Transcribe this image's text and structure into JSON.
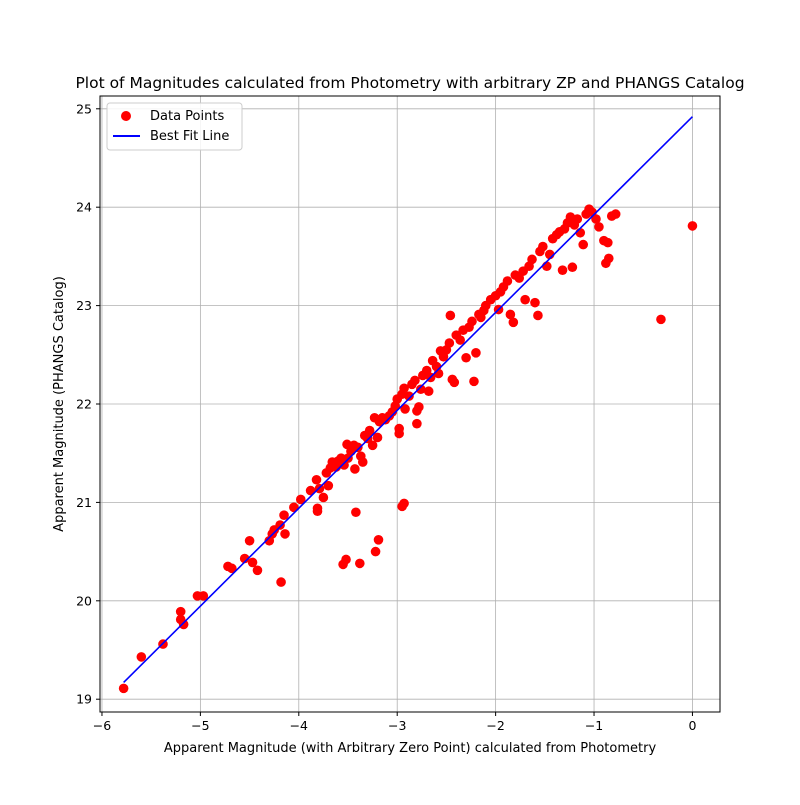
{
  "chart_data": {
    "type": "scatter",
    "title": "Plot of Magnitudes calculated from Photometry with arbitrary ZP and PHANGS Catalog",
    "xlabel": "Apparent Magnitude (with Arbitrary Zero Point) calculated from Photometry",
    "ylabel": "Apparent Magnitude (PHANGS Catalog)",
    "xlim": [
      -6.02,
      0.28
    ],
    "ylim": [
      18.87,
      25.13
    ],
    "xticks": [
      -6,
      -5,
      -4,
      -3,
      -2,
      -1,
      0
    ],
    "xtick_labels": [
      "−6",
      "−5",
      "−4",
      "−3",
      "−2",
      "−1",
      "0"
    ],
    "yticks": [
      19,
      20,
      21,
      22,
      23,
      24,
      25
    ],
    "ytick_labels": [
      "19",
      "20",
      "21",
      "22",
      "23",
      "24",
      "25"
    ],
    "grid": true,
    "legend_position": "top-left",
    "colors": {
      "points": "#ff0000",
      "line": "#0000ff"
    },
    "series": [
      {
        "name": "Data Points",
        "kind": "scatter",
        "points": [
          [
            -5.78,
            19.11
          ],
          [
            -5.6,
            19.43
          ],
          [
            -5.38,
            19.56
          ],
          [
            -5.2,
            19.89
          ],
          [
            -5.2,
            19.81
          ],
          [
            -5.17,
            19.76
          ],
          [
            -5.03,
            20.05
          ],
          [
            -4.97,
            20.05
          ],
          [
            -4.72,
            20.35
          ],
          [
            -4.68,
            20.33
          ],
          [
            -4.55,
            20.43
          ],
          [
            -4.5,
            20.61
          ],
          [
            -4.47,
            20.39
          ],
          [
            -4.42,
            20.31
          ],
          [
            -4.3,
            20.61
          ],
          [
            -4.27,
            20.68
          ],
          [
            -4.25,
            20.72
          ],
          [
            -4.19,
            20.77
          ],
          [
            -4.15,
            20.87
          ],
          [
            -4.14,
            20.68
          ],
          [
            -4.18,
            20.19
          ],
          [
            -4.05,
            20.95
          ],
          [
            -3.98,
            21.03
          ],
          [
            -3.88,
            21.12
          ],
          [
            -3.82,
            21.23
          ],
          [
            -3.79,
            21.14
          ],
          [
            -3.81,
            20.94
          ],
          [
            -3.81,
            20.91
          ],
          [
            -3.75,
            21.05
          ],
          [
            -3.72,
            21.3
          ],
          [
            -3.7,
            21.17
          ],
          [
            -3.68,
            21.35
          ],
          [
            -3.66,
            21.41
          ],
          [
            -3.62,
            21.36
          ],
          [
            -3.6,
            21.42
          ],
          [
            -3.57,
            21.45
          ],
          [
            -3.54,
            21.38
          ],
          [
            -3.51,
            21.59
          ],
          [
            -3.5,
            21.45
          ],
          [
            -3.47,
            21.52
          ],
          [
            -3.44,
            21.58
          ],
          [
            -3.43,
            21.34
          ],
          [
            -3.4,
            21.56
          ],
          [
            -3.37,
            21.47
          ],
          [
            -3.35,
            21.41
          ],
          [
            -3.33,
            21.68
          ],
          [
            -3.3,
            21.65
          ],
          [
            -3.28,
            21.73
          ],
          [
            -3.25,
            21.58
          ],
          [
            -3.23,
            21.86
          ],
          [
            -3.2,
            21.66
          ],
          [
            -3.18,
            21.82
          ],
          [
            -3.15,
            21.86
          ],
          [
            -3.12,
            21.84
          ],
          [
            -3.08,
            21.88
          ],
          [
            -3.05,
            21.92
          ],
          [
            -3.02,
            21.98
          ],
          [
            -3.0,
            22.05
          ],
          [
            -2.98,
            21.75
          ],
          [
            -2.98,
            21.7
          ],
          [
            -2.95,
            22.1
          ],
          [
            -2.93,
            22.16
          ],
          [
            -2.92,
            21.95
          ],
          [
            -2.88,
            22.08
          ],
          [
            -2.85,
            22.2
          ],
          [
            -2.82,
            22.24
          ],
          [
            -2.8,
            21.8
          ],
          [
            -2.8,
            21.93
          ],
          [
            -2.78,
            21.97
          ],
          [
            -2.76,
            22.15
          ],
          [
            -2.74,
            22.29
          ],
          [
            -2.7,
            22.34
          ],
          [
            -2.68,
            22.13
          ],
          [
            -2.66,
            22.27
          ],
          [
            -2.64,
            22.44
          ],
          [
            -2.6,
            22.38
          ],
          [
            -2.58,
            22.31
          ],
          [
            -2.56,
            22.54
          ],
          [
            -2.53,
            22.48
          ],
          [
            -2.5,
            22.55
          ],
          [
            -2.47,
            22.62
          ],
          [
            -2.46,
            22.9
          ],
          [
            -2.44,
            22.25
          ],
          [
            -2.42,
            22.22
          ],
          [
            -2.4,
            22.7
          ],
          [
            -2.36,
            22.65
          ],
          [
            -2.33,
            22.75
          ],
          [
            -2.3,
            22.47
          ],
          [
            -2.27,
            22.78
          ],
          [
            -2.24,
            22.84
          ],
          [
            -2.22,
            22.23
          ],
          [
            -2.2,
            22.52
          ],
          [
            -2.17,
            22.91
          ],
          [
            -2.15,
            22.88
          ],
          [
            -2.12,
            22.95
          ],
          [
            -2.1,
            23.0
          ],
          [
            -2.05,
            23.06
          ],
          [
            -2.0,
            23.1
          ],
          [
            -1.97,
            22.96
          ],
          [
            -1.95,
            23.14
          ],
          [
            -1.92,
            23.19
          ],
          [
            -1.88,
            23.25
          ],
          [
            -1.85,
            22.91
          ],
          [
            -1.82,
            22.83
          ],
          [
            -1.8,
            23.31
          ],
          [
            -1.76,
            23.28
          ],
          [
            -1.72,
            23.35
          ],
          [
            -1.7,
            23.06
          ],
          [
            -1.66,
            23.4
          ],
          [
            -1.63,
            23.47
          ],
          [
            -1.6,
            23.03
          ],
          [
            -1.57,
            22.9
          ],
          [
            -1.55,
            23.55
          ],
          [
            -1.52,
            23.6
          ],
          [
            -1.48,
            23.4
          ],
          [
            -1.45,
            23.52
          ],
          [
            -1.42,
            23.68
          ],
          [
            -1.38,
            23.72
          ],
          [
            -1.35,
            23.75
          ],
          [
            -1.32,
            23.36
          ],
          [
            -1.3,
            23.78
          ],
          [
            -1.27,
            23.84
          ],
          [
            -1.24,
            23.9
          ],
          [
            -1.22,
            23.39
          ],
          [
            -1.2,
            23.82
          ],
          [
            -1.17,
            23.88
          ],
          [
            -1.14,
            23.74
          ],
          [
            -1.11,
            23.62
          ],
          [
            -1.08,
            23.93
          ],
          [
            -1.05,
            23.98
          ],
          [
            -1.02,
            23.95
          ],
          [
            -0.98,
            23.88
          ],
          [
            -0.95,
            23.8
          ],
          [
            -0.9,
            23.66
          ],
          [
            -0.88,
            23.43
          ],
          [
            -0.86,
            23.64
          ],
          [
            -0.85,
            23.48
          ],
          [
            -0.82,
            23.91
          ],
          [
            -0.78,
            23.93
          ],
          [
            -0.32,
            22.86
          ],
          [
            0.0,
            23.81
          ],
          [
            -3.55,
            20.37
          ],
          [
            -3.52,
            20.42
          ],
          [
            -3.38,
            20.38
          ],
          [
            -3.22,
            20.5
          ],
          [
            -3.19,
            20.62
          ],
          [
            -3.42,
            20.9
          ],
          [
            -2.95,
            20.96
          ],
          [
            -2.93,
            20.99
          ]
        ]
      },
      {
        "name": "Best Fit Line",
        "kind": "line",
        "points": [
          [
            -5.78,
            19.17
          ],
          [
            0.0,
            24.92
          ]
        ]
      }
    ]
  }
}
